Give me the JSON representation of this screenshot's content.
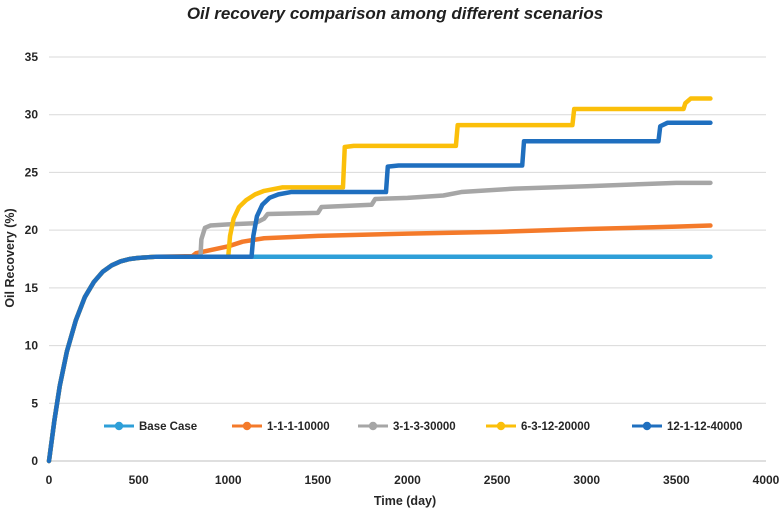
{
  "chart_data": {
    "type": "line",
    "title": "Oil recovery comparison among different scenarios",
    "xlabel": "Time (day)",
    "ylabel": "Oil Recovery (%)",
    "xlim": [
      0,
      4000
    ],
    "ylim": [
      0,
      35
    ],
    "xticks": [
      0,
      500,
      1000,
      1500,
      2000,
      2500,
      3000,
      3500,
      4000
    ],
    "yticks": [
      0,
      5,
      10,
      15,
      20,
      25,
      30,
      35
    ],
    "grid": "horizontal",
    "legend_position": "bottom-inside",
    "series": [
      {
        "name": "Base Case",
        "color": "#2e9fd8",
        "points": [
          [
            0,
            0
          ],
          [
            30,
            3.5
          ],
          [
            60,
            6.5
          ],
          [
            100,
            9.5
          ],
          [
            150,
            12.2
          ],
          [
            200,
            14.2
          ],
          [
            250,
            15.5
          ],
          [
            300,
            16.4
          ],
          [
            350,
            16.95
          ],
          [
            400,
            17.3
          ],
          [
            450,
            17.5
          ],
          [
            500,
            17.6
          ],
          [
            600,
            17.7
          ],
          [
            3690,
            17.7
          ]
        ]
      },
      {
        "name": "1-1-1-10000",
        "color": "#f47a2a",
        "points": [
          [
            0,
            0
          ],
          [
            30,
            3.5
          ],
          [
            60,
            6.5
          ],
          [
            100,
            9.5
          ],
          [
            150,
            12.2
          ],
          [
            200,
            14.2
          ],
          [
            250,
            15.5
          ],
          [
            300,
            16.4
          ],
          [
            350,
            16.95
          ],
          [
            400,
            17.3
          ],
          [
            450,
            17.5
          ],
          [
            500,
            17.6
          ],
          [
            600,
            17.7
          ],
          [
            800,
            17.75
          ],
          [
            820,
            18.0
          ],
          [
            1000,
            18.6
          ],
          [
            1080,
            19.0
          ],
          [
            1200,
            19.3
          ],
          [
            1500,
            19.5
          ],
          [
            2000,
            19.7
          ],
          [
            2500,
            19.85
          ],
          [
            3000,
            20.1
          ],
          [
            3500,
            20.3
          ],
          [
            3690,
            20.4
          ]
        ]
      },
      {
        "name": "3-1-3-30000",
        "color": "#a6a6a6",
        "points": [
          [
            0,
            0
          ],
          [
            30,
            3.5
          ],
          [
            60,
            6.5
          ],
          [
            100,
            9.5
          ],
          [
            150,
            12.2
          ],
          [
            200,
            14.2
          ],
          [
            250,
            15.5
          ],
          [
            300,
            16.4
          ],
          [
            350,
            16.95
          ],
          [
            400,
            17.3
          ],
          [
            450,
            17.5
          ],
          [
            500,
            17.6
          ],
          [
            600,
            17.7
          ],
          [
            845,
            17.7
          ],
          [
            850,
            19.2
          ],
          [
            870,
            20.2
          ],
          [
            900,
            20.4
          ],
          [
            1000,
            20.5
          ],
          [
            1150,
            20.6
          ],
          [
            1200,
            21.0
          ],
          [
            1220,
            21.4
          ],
          [
            1500,
            21.5
          ],
          [
            1520,
            22.0
          ],
          [
            1800,
            22.2
          ],
          [
            1820,
            22.7
          ],
          [
            2000,
            22.8
          ],
          [
            2200,
            23.0
          ],
          [
            2300,
            23.3
          ],
          [
            2600,
            23.6
          ],
          [
            3000,
            23.8
          ],
          [
            3500,
            24.1
          ],
          [
            3690,
            24.1
          ]
        ]
      },
      {
        "name": "6-3-12-20000",
        "color": "#fbbf0a",
        "points": [
          [
            0,
            0
          ],
          [
            30,
            3.5
          ],
          [
            60,
            6.5
          ],
          [
            100,
            9.5
          ],
          [
            150,
            12.2
          ],
          [
            200,
            14.2
          ],
          [
            250,
            15.5
          ],
          [
            300,
            16.4
          ],
          [
            350,
            16.95
          ],
          [
            400,
            17.3
          ],
          [
            450,
            17.5
          ],
          [
            500,
            17.6
          ],
          [
            600,
            17.7
          ],
          [
            1000,
            17.7
          ],
          [
            1010,
            19.5
          ],
          [
            1030,
            21.0
          ],
          [
            1060,
            22.0
          ],
          [
            1100,
            22.6
          ],
          [
            1150,
            23.1
          ],
          [
            1200,
            23.4
          ],
          [
            1300,
            23.7
          ],
          [
            1640,
            23.7
          ],
          [
            1650,
            27.2
          ],
          [
            1700,
            27.3
          ],
          [
            2270,
            27.3
          ],
          [
            2280,
            29.1
          ],
          [
            2920,
            29.1
          ],
          [
            2930,
            30.5
          ],
          [
            3540,
            30.5
          ],
          [
            3550,
            31.0
          ],
          [
            3580,
            31.4
          ],
          [
            3690,
            31.4
          ]
        ]
      },
      {
        "name": "12-1-12-40000",
        "color": "#1f6fbf",
        "points": [
          [
            0,
            0
          ],
          [
            30,
            3.5
          ],
          [
            60,
            6.5
          ],
          [
            100,
            9.5
          ],
          [
            150,
            12.2
          ],
          [
            200,
            14.2
          ],
          [
            250,
            15.5
          ],
          [
            300,
            16.4
          ],
          [
            350,
            16.95
          ],
          [
            400,
            17.3
          ],
          [
            450,
            17.5
          ],
          [
            500,
            17.6
          ],
          [
            600,
            17.7
          ],
          [
            1130,
            17.7
          ],
          [
            1140,
            19.5
          ],
          [
            1160,
            21.2
          ],
          [
            1190,
            22.2
          ],
          [
            1230,
            22.8
          ],
          [
            1280,
            23.1
          ],
          [
            1350,
            23.3
          ],
          [
            1880,
            23.3
          ],
          [
            1890,
            25.5
          ],
          [
            1950,
            25.6
          ],
          [
            2640,
            25.6
          ],
          [
            2650,
            27.7
          ],
          [
            3400,
            27.7
          ],
          [
            3410,
            29.0
          ],
          [
            3450,
            29.3
          ],
          [
            3690,
            29.3
          ]
        ]
      }
    ]
  }
}
